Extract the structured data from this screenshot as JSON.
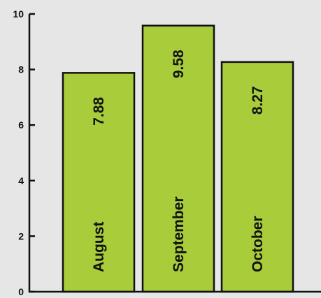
{
  "chart_data": {
    "type": "bar",
    "title": "",
    "xlabel": "",
    "ylabel": "",
    "categories": [
      "August",
      "September",
      "October"
    ],
    "values": [
      7.88,
      9.58,
      8.27
    ],
    "value_labels": [
      "7.88",
      "9.58",
      "8.27"
    ],
    "ylim": [
      0,
      10
    ],
    "yticks": [
      0,
      2,
      4,
      6,
      8,
      10
    ],
    "ytick_labels": [
      "0",
      "2",
      "4",
      "6",
      "8",
      "10"
    ],
    "grid": false,
    "colors": {
      "bar": "#a8cc3a",
      "bar_edge": "#111111",
      "axis": "#111111",
      "background": "#e6e6e6"
    }
  }
}
